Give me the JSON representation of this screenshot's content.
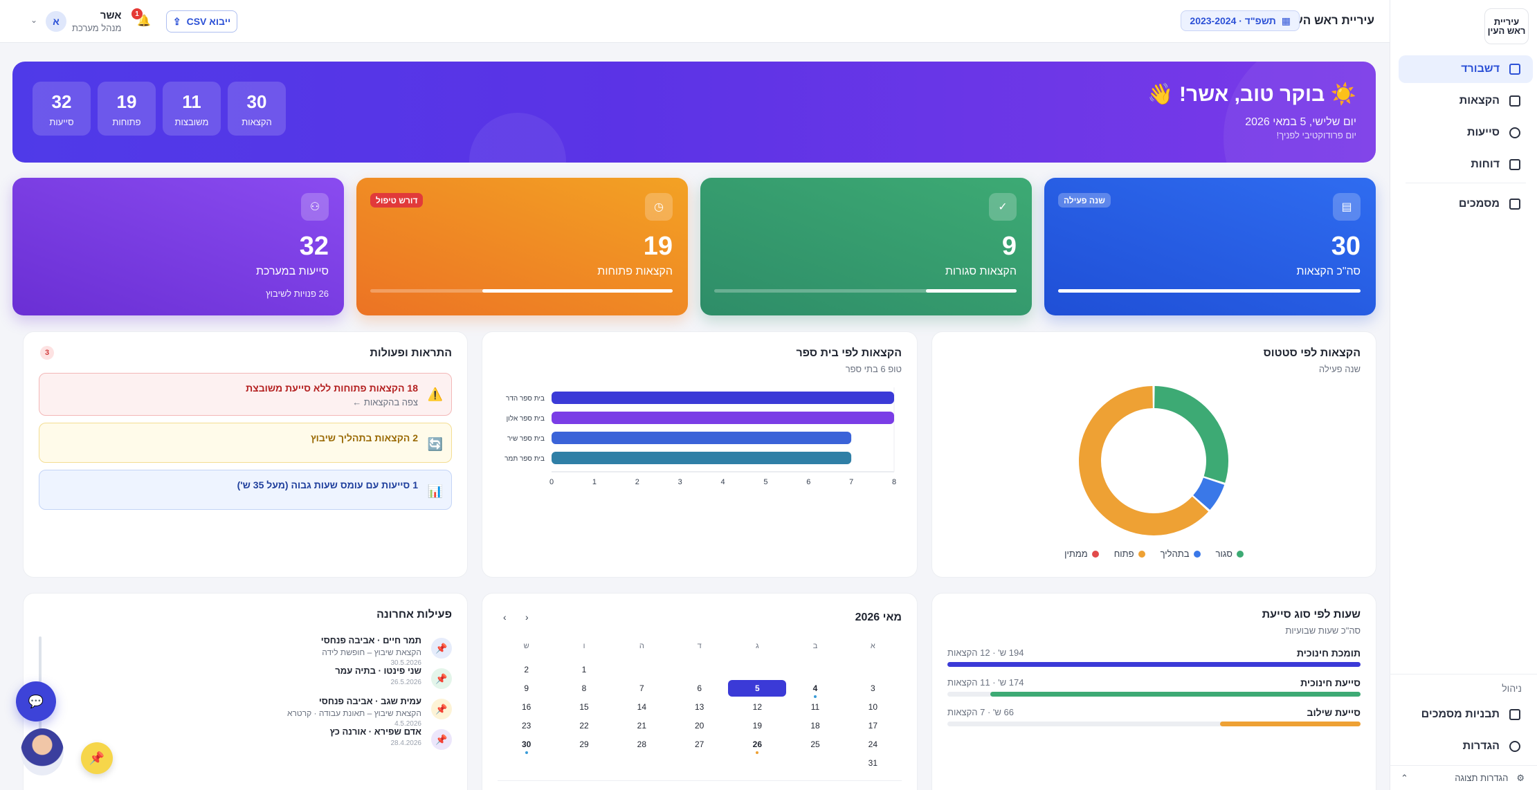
{
  "topbar": {
    "city": "עיריית ראש העין",
    "logo_text": "עיריית ראש העין",
    "year": "תשפ\"ד · 2023-2024",
    "csv_button": "ייבוא CSV",
    "notifications_count": "1",
    "user_name": "אשר",
    "user_role": "מנהל מערכת",
    "user_initial": "א"
  },
  "sidebar": {
    "items": [
      {
        "label": "דשבורד",
        "icon": "grid-icon"
      },
      {
        "label": "הקצאות",
        "icon": "clipboard-icon"
      },
      {
        "label": "סייעות",
        "icon": "people-icon"
      },
      {
        "label": "דוחות",
        "icon": "document-icon"
      },
      {
        "label": "מסמכים",
        "icon": "document-icon"
      }
    ],
    "manage_title": "ניהול",
    "manage_items": [
      {
        "label": "תבניות מסמכים",
        "icon": "template-icon"
      },
      {
        "label": "הגדרות",
        "icon": "gear-icon"
      }
    ],
    "display_settings": "הגדרות תצוגה"
  },
  "hero": {
    "greeting": "☀️ בוקר טוב, אשר! 👋",
    "date": "יום שלישי, 5 במאי 2026",
    "subtitle": "יום פרודוקטיבי לפניך!",
    "stats": [
      {
        "value": "30",
        "label": "הקצאות"
      },
      {
        "value": "11",
        "label": "משובצות"
      },
      {
        "value": "19",
        "label": "פתוחות"
      },
      {
        "value": "32",
        "label": "סייעות"
      }
    ]
  },
  "cards": [
    {
      "value": "30",
      "label": "סה\"כ הקצאות",
      "badge": "שנה פעילה",
      "progress": 1.0,
      "color": "#2458e0"
    },
    {
      "value": "9",
      "label": "הקצאות סגורות",
      "badge": "",
      "progress": 0.3,
      "color": "#2e9a6c"
    },
    {
      "value": "19",
      "label": "הקצאות פתוחות",
      "badge": "דורש טיפול",
      "progress": 0.63,
      "color": "#ef8a24"
    },
    {
      "value": "32",
      "label": "סייעות במערכת",
      "badge": "",
      "note": "26 פנויות לשיבוץ",
      "color": "#7a3de6"
    }
  ],
  "status_panel": {
    "title": "הקצאות לפי סטטוס",
    "subtitle": "שנה פעילה",
    "legend": [
      {
        "name": "סגור",
        "color": "#3daa74"
      },
      {
        "name": "בתהליך",
        "color": "#3a78e8"
      },
      {
        "name": "פתוח",
        "color": "#eea134"
      },
      {
        "name": "ממתין",
        "color": "#e14a4a"
      }
    ]
  },
  "school_panel": {
    "title": "הקצאות לפי בית ספר",
    "subtitle": "טופ 6 בתי ספר"
  },
  "alerts_panel": {
    "title": "התראות ופעולות",
    "count": "3",
    "alerts": [
      {
        "text": "18 הקצאות פתוחות ללא סייעת משובצת",
        "sub": "צפה בהקצאות ←",
        "icon": "⚠️",
        "kind": "red"
      },
      {
        "text": "2 הקצאות בתהליך שיבוץ",
        "sub": "",
        "icon": "🔄",
        "kind": "yellow"
      },
      {
        "text": "1 סייעות עם עומס שעות גבוה (מעל 35 ש')",
        "sub": "",
        "icon": "📊",
        "kind": "blue"
      }
    ]
  },
  "hours_panel": {
    "title": "שעות לפי סוג סייעת",
    "subtitle": "סה\"כ שעות שבועיות",
    "rows": [
      {
        "name": "תומכת חינוכית",
        "meta": "194 ש' · 12 הקצאות",
        "hours": 194,
        "color": "#3b3ad7"
      },
      {
        "name": "סייעת חינוכית",
        "meta": "174 ש' · 11 הקצאות",
        "hours": 174,
        "color": "#3daa74"
      },
      {
        "name": "סייעת שילוב",
        "meta": "66 ש' · 7 הקצאות",
        "hours": 66,
        "color": "#eea134"
      }
    ]
  },
  "calendar": {
    "title": "מאי 2026",
    "prev": "‹",
    "next": "›",
    "weekdays": [
      "א",
      "ב",
      "ג",
      "ד",
      "ה",
      "ו",
      "ש"
    ],
    "lead_blanks": 5,
    "days_in_month": 31,
    "today": 5,
    "marked": [
      {
        "day": 4,
        "color": "#3a9cd8"
      },
      {
        "day": 26,
        "color": "#eea134"
      },
      {
        "day": 30,
        "color": "#3a9cd8"
      }
    ]
  },
  "activity_panel": {
    "title": "פעילות אחרונה",
    "items": [
      {
        "title": "תמר חיים · אביבה פנחסי",
        "sub": "הקצאת שיבוץ – חופשת לידה",
        "date": "30.5.2026",
        "bg": "#e6ecfb"
      },
      {
        "title": "שני פינטו · בתיה עמר",
        "sub": "",
        "date": "26.5.2026",
        "bg": "#e4f5ea"
      },
      {
        "title": "עמית שגב · אביבה פנחסי",
        "sub": "הקצאת שיבוץ – תאונת עבודה · קרטרא",
        "date": "4.5.2026",
        "bg": "#fdf3d6"
      },
      {
        "title": "אדם שפירא · אורנה כץ",
        "sub": "",
        "date": "28.4.2026",
        "bg": "#ece6fb"
      }
    ]
  },
  "chart_data": [
    {
      "type": "pie",
      "title": "הקצאות לפי סטטוס",
      "categories": [
        "סגור",
        "בתהליך",
        "פתוח",
        "ממתין"
      ],
      "values": [
        9,
        2,
        19,
        0
      ],
      "colors": [
        "#3daa74",
        "#3a78e8",
        "#eea134",
        "#e14a4a"
      ],
      "legend": "bottom"
    },
    {
      "type": "bar",
      "orientation": "horizontal",
      "title": "הקצאות לפי בית ספר",
      "categories": [
        "בית ספר הדר",
        "בית ספר אלון",
        "בית ספר שיר",
        "בית ספר תמר"
      ],
      "values": [
        8,
        8,
        7,
        7
      ],
      "colors": [
        "#3b3ad7",
        "#7a3de6",
        "#3a63d8",
        "#2f7fa6"
      ],
      "xlim": [
        0,
        8
      ],
      "xticks": [
        "0",
        "1",
        "2",
        "3",
        "4",
        "5",
        "6",
        "7",
        "8"
      ]
    }
  ]
}
